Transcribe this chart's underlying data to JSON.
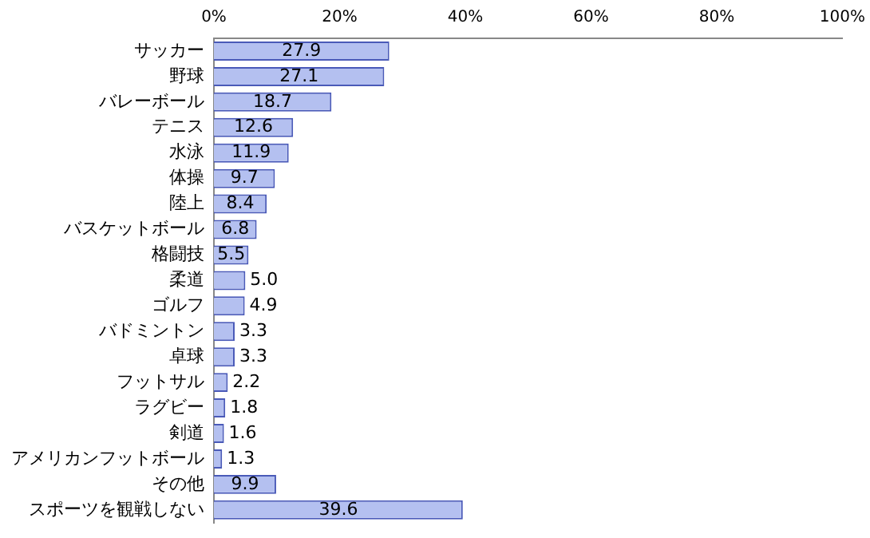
{
  "chart_data": {
    "type": "bar",
    "orientation": "horizontal",
    "categories": [
      "サッカー",
      "野球",
      "バレーボール",
      "テニス",
      "水泳",
      "体操",
      "陸上",
      "バスケットボール",
      "格闘技",
      "柔道",
      "ゴルフ",
      "バドミントン",
      "卓球",
      "フットサル",
      "ラグビー",
      "剣道",
      "アメリカンフットボール",
      "その他",
      "スポーツを観戦しない"
    ],
    "values": [
      27.9,
      27.1,
      18.7,
      12.6,
      11.9,
      9.7,
      8.4,
      6.8,
      5.5,
      5.0,
      4.9,
      3.3,
      3.3,
      2.2,
      1.8,
      1.6,
      1.3,
      9.9,
      39.6
    ],
    "color": "#b4c0f0",
    "xlim": [
      0,
      100
    ],
    "xticks": [
      {
        "value": 0,
        "label": "0%"
      },
      {
        "value": 20,
        "label": "20%"
      },
      {
        "value": 40,
        "label": "40%"
      },
      {
        "value": 60,
        "label": "60%"
      },
      {
        "value": 80,
        "label": "80%"
      },
      {
        "value": 100,
        "label": "100%"
      }
    ],
    "value_labels": [
      "27.9",
      "27.1",
      "18.7",
      "12.6",
      "11.9",
      "9.7",
      "8.4",
      "6.8",
      "5.5",
      "5.0",
      "4.9",
      "3.3",
      "3.3",
      "2.2",
      "1.8",
      "1.6",
      "1.3",
      "9.9",
      "39.6"
    ]
  }
}
